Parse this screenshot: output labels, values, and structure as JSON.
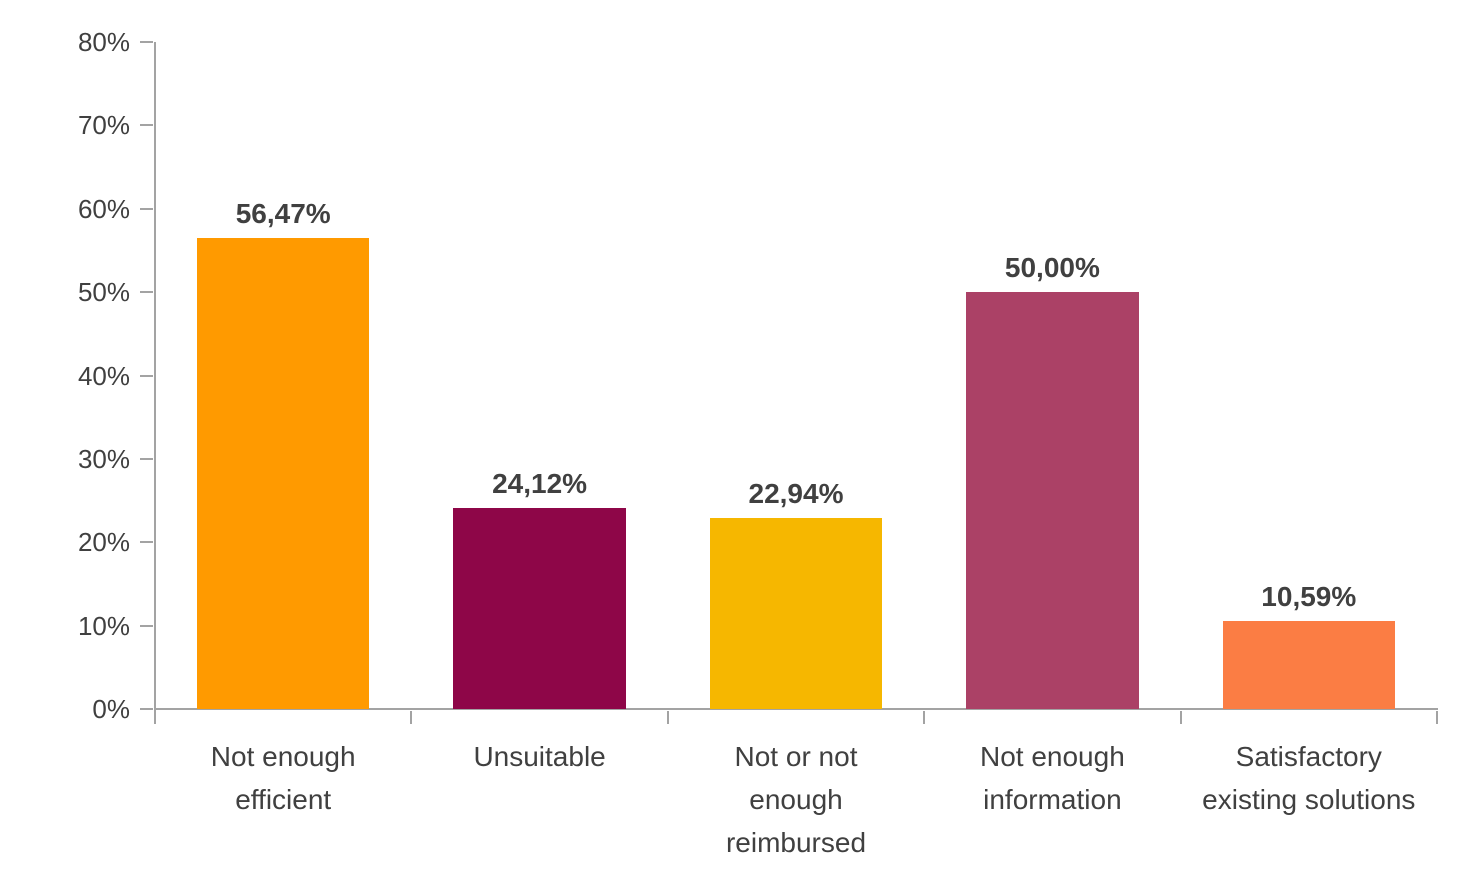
{
  "chart_data": {
    "type": "bar",
    "title": "",
    "xlabel": "",
    "ylabel": "",
    "categories": [
      "Not enough efficient",
      "Unsuitable",
      "Not or not enough reimbursed",
      "Not enough information",
      "Satisfactory existing solutions"
    ],
    "values": [
      56.47,
      24.12,
      22.94,
      50.0,
      10.59
    ],
    "data_labels": [
      "56,47%",
      "24,12%",
      "22,94%",
      "50,00%",
      "10,59%"
    ],
    "bar_colors": [
      "#FF9A00",
      "#8E0648",
      "#F6B700",
      "#AB4166",
      "#FB7D44"
    ],
    "ylim": [
      0,
      80
    ],
    "ytick_step": 10,
    "ytick_labels": [
      "0%",
      "10%",
      "20%",
      "30%",
      "40%",
      "50%",
      "60%",
      "70%",
      "80%"
    ],
    "grid": false,
    "legend": false,
    "axis_color": "#a3a3a3",
    "text_color": "#404040"
  }
}
